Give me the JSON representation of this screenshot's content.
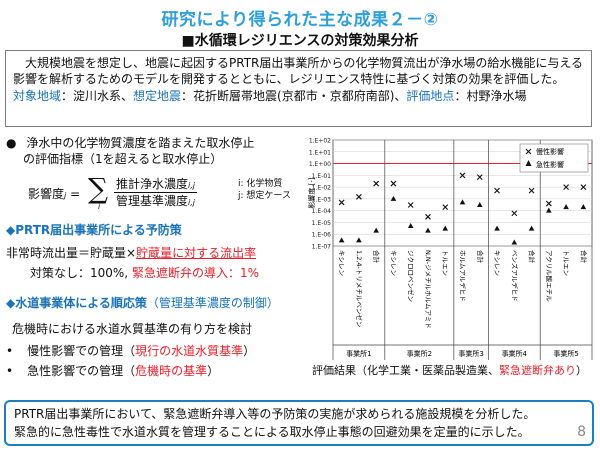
{
  "title": "研究により得られた主な成果２－②",
  "subtitle": "■水循環レジリエンスの対策効果分析",
  "intro": {
    "text": "大規模地震を想定し、地震に起因するPRTR届出事業所からの化学物質流出が浄水場の給水機能に与える影響を解析するためのモデルを開発するとともに、レジリエンス特性に基づく対策の効果を評価した。",
    "meta": [
      {
        "label": "対象地域",
        "value": "：淀川水系、"
      },
      {
        "label": "想定地震",
        "value": "：花折断層帯地震(京都市・京都府南部)、"
      },
      {
        "label": "評価地点",
        "value": "：村野浄水場"
      }
    ]
  },
  "left": {
    "bullet": "●",
    "bullet_text_1": "浄水中の化学物質濃度を踏まえた取水停止",
    "bullet_text_2": "の評価指標（1を超えると取水停止）",
    "equation": {
      "lhs": "影響度",
      "lhs_sub": "j",
      "eq": "=",
      "sigma": "∑",
      "sigma_sub": "i",
      "numerator": "推計浄水濃度",
      "denominator": "管理基準濃度",
      "ij": "i,j",
      "legend_1": "i: 化学物質",
      "legend_2": "j: 想定ケース"
    },
    "sec1_title": "◆PRTR届出事業所による予防策",
    "sec1_line1_a": "非常時流出量＝貯蔵量×",
    "sec1_line1_b": "貯蔵量に対する流出率",
    "sec1_line2_a": "対策なし：100%, ",
    "sec1_line2_b": "緊急遮断弁の導入：1%",
    "sec2_title_a": "◆水道事業体による順応策",
    "sec2_title_b": "（管理基準濃度の制御）",
    "sec2_line1": "危機時における水道水質基準の有り方を検討",
    "sec2_item1_a": "慢性影響での管理（",
    "sec2_item1_b": "現行の水道水質基準",
    "sec2_item1_c": "）",
    "sec2_item2_a": "急性影響での管理（",
    "sec2_item2_b": "危機時の基準",
    "sec2_item2_c": "）"
  },
  "chart_data": {
    "type": "scatter",
    "ylabel": "影響度 [-]",
    "yscale": "log",
    "ylim": [
      1e-07,
      100
    ],
    "yticks": [
      "1.E+02",
      "1.E+01",
      "1.E+00",
      "1.E-01",
      "1.E-02",
      "1.E-03",
      "1.E-04",
      "1.E-05",
      "1.E-06",
      "1.E-07"
    ],
    "reference_line": 1,
    "reference_color": "#e8202a",
    "legend": [
      "慢性影響",
      "急性影響"
    ],
    "legend_position": "top-right",
    "categories": [
      "キシレン",
      "1,2,4-トリメチルベンゼン",
      "合計",
      "キシレン",
      "ジクロロベンゼン",
      "N,N-ジメチルホルムアミド",
      "トルエン",
      "ホルムアルデヒド",
      "合計",
      "キシレン",
      "ベンズアルデヒド",
      "合計",
      "アクリル酸エチル",
      "トルエン",
      "合計"
    ],
    "groups": [
      {
        "name": "事業所1",
        "count": 3
      },
      {
        "name": "事業所2",
        "count": 4
      },
      {
        "name": "事業所3",
        "count": 2
      },
      {
        "name": "事業所4",
        "count": 3
      },
      {
        "name": "事業所5",
        "count": 3
      }
    ],
    "series": [
      {
        "name": "慢性影響",
        "marker": "x",
        "values": [
          0.0005,
          0.0015,
          0.02,
          0.02,
          0.0003,
          3e-05,
          0.0002,
          0.1,
          0.07,
          0.005,
          6e-05,
          0.005,
          0.0004,
          0.01,
          0.01
        ]
      },
      {
        "name": "急性影響",
        "marker": "triangle",
        "values": [
          3e-07,
          3e-07,
          2e-06,
          0.001,
          5e-06,
          2e-06,
          3e-06,
          0.0005,
          0.0003,
          3e-06,
          2e-07,
          3e-06,
          0.0001,
          0.0002,
          0.0002
        ]
      }
    ]
  },
  "chart_caption_a": "評価結果（化学工業・医薬品製造業、",
  "chart_caption_b": "緊急遮断弁あり",
  "chart_caption_c": "）",
  "bottom": {
    "line1": "PRTR届出事業所において、緊急遮断弁導入等の予防策の実施が求められる施設規模を分析した。",
    "line2": "緊急的に急性毒性で水道水質を管理することによる取水停止事態の回避効果を定量的に示した。"
  },
  "page_number": "8"
}
